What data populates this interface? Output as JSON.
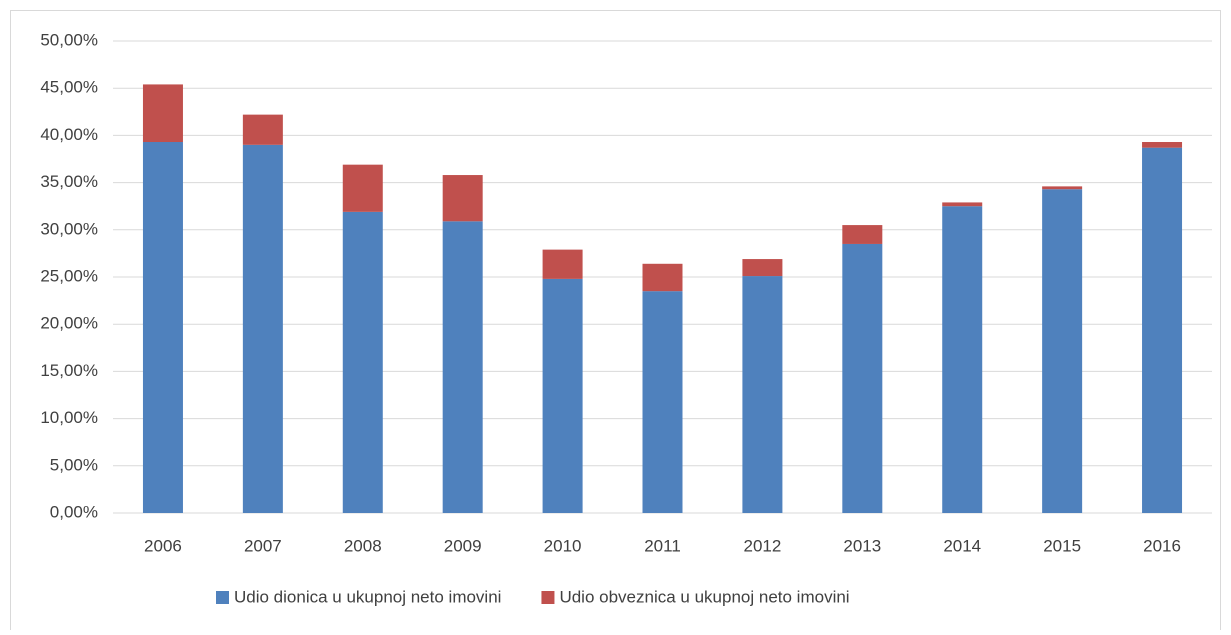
{
  "chart_data": {
    "type": "stacked_bar",
    "categories": [
      "2006",
      "2007",
      "2008",
      "2009",
      "2010",
      "2011",
      "2012",
      "2013",
      "2014",
      "2015",
      "2016"
    ],
    "series": [
      {
        "name": "Udio dionica u ukupnoj neto imovini",
        "color": "#4f81bd",
        "values": [
          39.3,
          39.0,
          31.9,
          30.9,
          24.8,
          23.5,
          25.1,
          28.5,
          32.5,
          34.3,
          38.7
        ]
      },
      {
        "name": "Udio obveznica u ukupnoj neto imovini",
        "color": "#c0504d",
        "values": [
          6.1,
          3.2,
          5.0,
          4.9,
          3.1,
          2.9,
          1.8,
          2.0,
          0.4,
          0.3,
          0.6
        ]
      }
    ],
    "ylim": [
      0,
      50
    ],
    "yticks": [
      {
        "value": 0,
        "label": "0,00%"
      },
      {
        "value": 5,
        "label": "5,00%"
      },
      {
        "value": 10,
        "label": "10,00%"
      },
      {
        "value": 15,
        "label": "15,00%"
      },
      {
        "value": 20,
        "label": "20,00%"
      },
      {
        "value": 25,
        "label": "25,00%"
      },
      {
        "value": 30,
        "label": "30,00%"
      },
      {
        "value": 35,
        "label": "35,00%"
      },
      {
        "value": 40,
        "label": "40,00%"
      },
      {
        "value": 45,
        "label": "45,00%"
      },
      {
        "value": 50,
        "label": "50,00%"
      }
    ],
    "grid": true,
    "legend": "bottom"
  }
}
